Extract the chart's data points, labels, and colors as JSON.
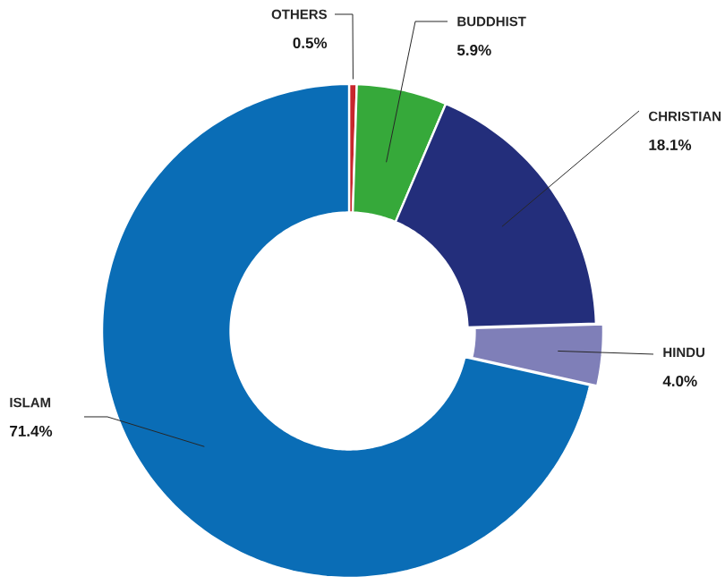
{
  "chart_data": {
    "type": "donut",
    "categories": [
      "OTHERS",
      "BUDDHIST",
      "CHRISTIAN",
      "HINDU",
      "ISLAM"
    ],
    "values": [
      0.5,
      5.9,
      18.1,
      4.0,
      71.4
    ],
    "value_labels": [
      "0.5%",
      "5.9%",
      "18.1%",
      "4.0%",
      "71.4%"
    ],
    "colors": [
      "#c8262c",
      "#36a93a",
      "#232e7b",
      "#7f7fb8",
      "#0a6db6"
    ]
  }
}
